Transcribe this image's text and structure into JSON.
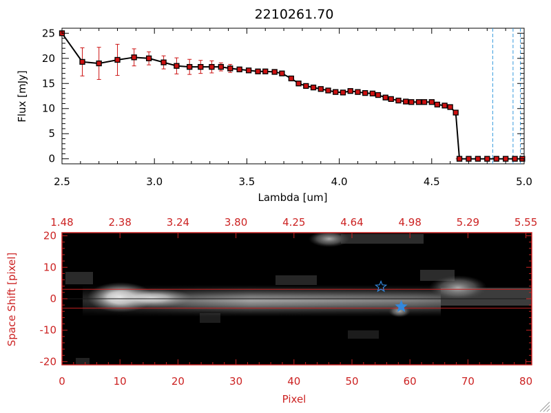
{
  "chart_data": [
    {
      "type": "line",
      "title": "2210261.70",
      "xlabel": "Lambda [um]",
      "ylabel": "Flux [mJy]",
      "xlim": [
        2.5,
        5.0
      ],
      "ylim": [
        -1,
        26
      ],
      "x_ticks": [
        "2.5",
        "3.0",
        "3.5",
        "4.0",
        "4.5",
        "5.0"
      ],
      "y_ticks": [
        "0",
        "5",
        "10",
        "15",
        "20",
        "25"
      ],
      "line_color": "#000000",
      "marker_color": "#cc1111",
      "errorbar_color": "#cc1111",
      "series": [
        {
          "name": "flux",
          "x": [
            2.5,
            2.61,
            2.7,
            2.8,
            2.89,
            2.97,
            3.05,
            3.12,
            3.19,
            3.25,
            3.31,
            3.36,
            3.41,
            3.46,
            3.51,
            3.56,
            3.6,
            3.65,
            3.69,
            3.74,
            3.78,
            3.82,
            3.86,
            3.9,
            3.94,
            3.98,
            4.02,
            4.06,
            4.1,
            4.14,
            4.18,
            4.21,
            4.25,
            4.28,
            4.32,
            4.36,
            4.39,
            4.43,
            4.46,
            4.5,
            4.53,
            4.57,
            4.6,
            4.63,
            4.65,
            4.7,
            4.75,
            4.8,
            4.85,
            4.9,
            4.95,
            4.99
          ],
          "y": [
            25.0,
            19.3,
            19.0,
            19.7,
            20.2,
            20.0,
            19.2,
            18.5,
            18.3,
            18.3,
            18.3,
            18.3,
            18.0,
            17.8,
            17.6,
            17.4,
            17.4,
            17.3,
            17.0,
            16.0,
            15.0,
            14.5,
            14.2,
            13.9,
            13.6,
            13.3,
            13.2,
            13.5,
            13.3,
            13.1,
            13.0,
            12.7,
            12.2,
            11.9,
            11.6,
            11.4,
            11.3,
            11.3,
            11.3,
            11.3,
            10.8,
            10.6,
            10.3,
            9.2,
            0.0,
            0.0,
            0.0,
            0.0,
            0.0,
            0.0,
            0.0,
            0.0
          ],
          "err": [
            0,
            2.8,
            3.2,
            3.1,
            1.7,
            1.3,
            1.3,
            1.6,
            1.5,
            1.3,
            1.2,
            0.8,
            0.8,
            0,
            0,
            0,
            0,
            0,
            0,
            0,
            0,
            0,
            0,
            0,
            0,
            0,
            0,
            0,
            0,
            0,
            0,
            0,
            0,
            0,
            0,
            0,
            0,
            0,
            0,
            0,
            0,
            0,
            0,
            0,
            0,
            0,
            0,
            0,
            0,
            0,
            0,
            0
          ]
        }
      ],
      "annotations": [
        {
          "type": "vline",
          "x": 4.83,
          "color": "#3399dd",
          "style": "dashed"
        },
        {
          "type": "vline",
          "x": 4.94,
          "color": "#3399dd",
          "style": "dashed"
        },
        {
          "type": "vline",
          "x": 4.98,
          "color": "#3399dd",
          "style": "dashed"
        },
        {
          "type": "hline",
          "y": 0.0,
          "x_from": 4.63,
          "x_to": 5.0,
          "color": "#cc1111",
          "style": "dashed"
        }
      ]
    },
    {
      "type": "heatmap",
      "xlabel": "Pixel",
      "ylabel": "Space Shift [pixel]",
      "xlim": [
        0,
        81
      ],
      "ylim": [
        -21,
        21
      ],
      "x_ticks": [
        "0",
        "10",
        "20",
        "30",
        "40",
        "50",
        "60",
        "70",
        "80"
      ],
      "y_ticks": [
        "-20",
        "-10",
        "0",
        "10",
        "20"
      ],
      "top_ticks": [
        "1.48",
        "2.38",
        "3.24",
        "3.80",
        "4.25",
        "4.64",
        "4.98",
        "5.29",
        "5.55"
      ],
      "axis_color": "#cc2222",
      "trace_lines": [
        3,
        -3
      ],
      "markers": [
        {
          "type": "open-star",
          "x": 55,
          "y": 3.8,
          "color": "#3388dd"
        },
        {
          "type": "filled-star",
          "x": 58.5,
          "y": -2.5,
          "color": "#3388dd"
        }
      ]
    }
  ]
}
